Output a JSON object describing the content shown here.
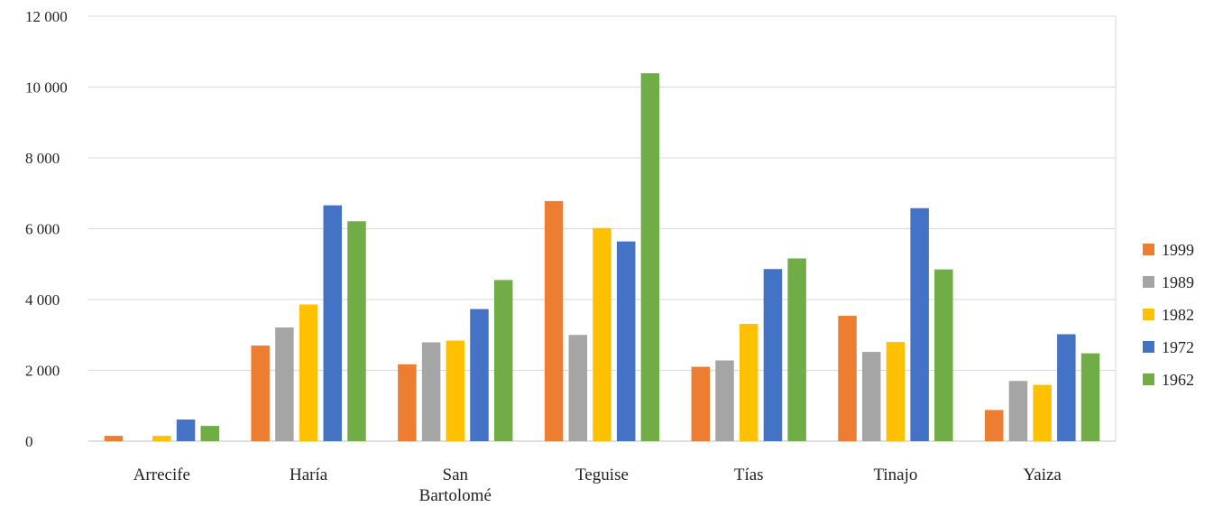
{
  "chart_data": {
    "type": "bar",
    "categories": [
      "Arrecife",
      "Haría",
      "San Bartolomé",
      "Teguise",
      "Tías",
      "Tinajo",
      "Yaiza"
    ],
    "category_lines": [
      [
        "Arrecife"
      ],
      [
        "Haría"
      ],
      [
        "San",
        "Bartolomé"
      ],
      [
        "Teguise"
      ],
      [
        "Tías"
      ],
      [
        "Tinajo"
      ],
      [
        "Yaiza"
      ]
    ],
    "series": [
      {
        "name": "1999",
        "color": "#ED7D31",
        "values": [
          150,
          2700,
          2170,
          6780,
          2100,
          3540,
          880
        ]
      },
      {
        "name": "1989",
        "color": "#A5A5A5",
        "values": [
          0,
          3210,
          2790,
          3000,
          2280,
          2520,
          1700
        ]
      },
      {
        "name": "1982",
        "color": "#FFC000",
        "values": [
          150,
          3860,
          2840,
          6020,
          3310,
          2800,
          1590
        ]
      },
      {
        "name": "1972",
        "color": "#4472C4",
        "values": [
          610,
          6660,
          3730,
          5640,
          4860,
          6580,
          3020
        ]
      },
      {
        "name": "1962",
        "color": "#70AD47",
        "values": [
          430,
          6210,
          4550,
          10390,
          5160,
          4850,
          2480
        ]
      }
    ],
    "ylim": [
      0,
      12000
    ],
    "yticks": [
      0,
      2000,
      4000,
      6000,
      8000,
      10000,
      12000
    ],
    "ytick_labels": [
      "0",
      "2 000",
      "4 000",
      "6 000",
      "8 000",
      "10 000",
      "12 000"
    ],
    "legend_order": [
      "1999",
      "1989",
      "1982",
      "1972",
      "1962"
    ],
    "legend_position": "right",
    "grid": true
  }
}
